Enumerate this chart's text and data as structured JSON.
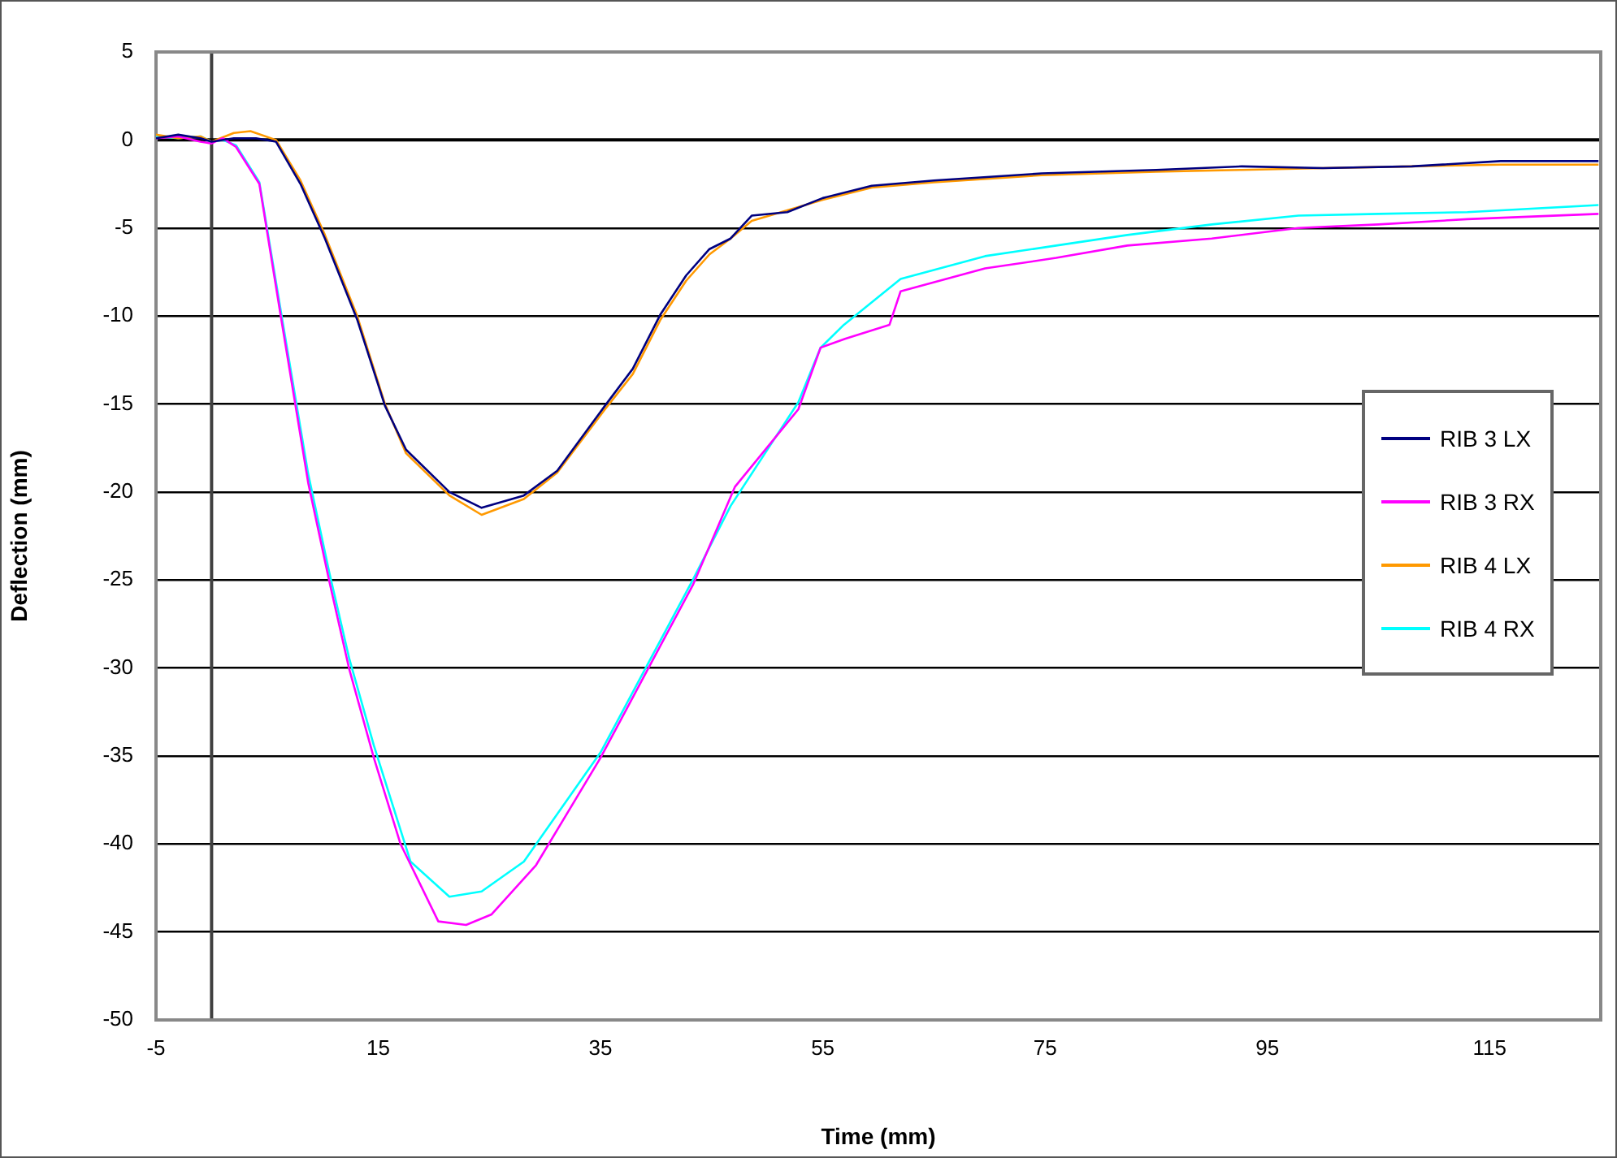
{
  "chart_data": {
    "type": "line",
    "xlabel": "Time (mm)",
    "ylabel": "Deflection (mm)",
    "xlim": [
      -5,
      125
    ],
    "xticks": [
      -5,
      15,
      35,
      55,
      75,
      95,
      115
    ],
    "ylim": [
      -50,
      5
    ],
    "yticks": [
      5,
      0,
      -5,
      -10,
      -15,
      -20,
      -25,
      -30,
      -35,
      -40,
      -45,
      -50
    ],
    "grid": "y",
    "legend": "right",
    "marker": "none",
    "line_style": "solid",
    "ref_lines": [
      {
        "axis": "x",
        "value": 0,
        "color": "#404040"
      },
      {
        "axis": "y",
        "value": 0,
        "color": "#000000"
      }
    ],
    "series": [
      {
        "name": "RIB 3 LX",
        "color": "#000080",
        "x": [
          -5,
          -3,
          -1,
          0,
          2,
          4,
          5.8,
          8,
          10.2,
          13.1,
          15.6,
          17.5,
          21.4,
          24.3,
          28.1,
          31.1,
          35.4,
          37.9,
          40.4,
          42.7,
          44.8,
          46.7,
          48.6,
          51.8,
          55,
          59.4,
          65,
          74.7,
          85,
          92.7,
          100,
          108,
          116,
          124.8
        ],
        "values": [
          0.1,
          0.3,
          0.1,
          -0.1,
          0.1,
          0.1,
          -0.1,
          -2.5,
          -5.6,
          -10.2,
          -15.1,
          -17.6,
          -20.0,
          -20.9,
          -20.2,
          -18.8,
          -15.1,
          -13.0,
          -9.9,
          -7.7,
          -6.2,
          -5.6,
          -4.3,
          -4.1,
          -3.3,
          -2.6,
          -2.3,
          -1.9,
          -1.7,
          -1.5,
          -1.6,
          -1.5,
          -1.2,
          -1.2
        ]
      },
      {
        "name": "RIB 3 RX",
        "color": "#ff00ff",
        "x": [
          -5,
          -3,
          -1,
          0,
          1,
          2.2,
          4.3,
          6.2,
          8.7,
          10.6,
          12.4,
          14.6,
          17.0,
          20.4,
          22.9,
          25.2,
          29.2,
          35,
          39.4,
          43.3,
          47.1,
          52.8,
          54.8,
          57,
          61,
          62,
          69.6,
          76,
          82.4,
          90,
          97.8,
          105,
          113,
          124.8
        ],
        "values": [
          0.1,
          0.2,
          -0.1,
          -0.2,
          0.1,
          -0.4,
          -2.5,
          -9.9,
          -19.5,
          -25.1,
          -30.1,
          -35.1,
          -40.0,
          -44.4,
          -44.6,
          -44.0,
          -41.2,
          -35.1,
          -29.9,
          -25.3,
          -19.7,
          -15.3,
          -11.8,
          -11.3,
          -10.5,
          -8.6,
          -7.3,
          -6.7,
          -6.0,
          -5.6,
          -5.0,
          -4.8,
          -4.5,
          -4.2
        ]
      },
      {
        "name": "RIB 4 LX",
        "color": "#ff9900",
        "x": [
          -5,
          -3,
          -1,
          0,
          2,
          3.5,
          5.8,
          8,
          10.2,
          13.1,
          15.6,
          17.5,
          21.4,
          24.3,
          28.1,
          31.1,
          35.4,
          37.9,
          40.4,
          42.7,
          44.8,
          46.7,
          48.6,
          51.8,
          55,
          59.4,
          65,
          74.7,
          85,
          92.7,
          100,
          108,
          116,
          124.8
        ],
        "values": [
          0.3,
          0.1,
          0.2,
          -0.1,
          0.4,
          0.5,
          0,
          -2.3,
          -5.4,
          -10.0,
          -15.0,
          -17.8,
          -20.2,
          -21.3,
          -20.4,
          -18.9,
          -15.3,
          -13.3,
          -10.2,
          -8.0,
          -6.5,
          -5.6,
          -4.6,
          -4.0,
          -3.4,
          -2.7,
          -2.4,
          -2.0,
          -1.8,
          -1.7,
          -1.6,
          -1.5,
          -1.4,
          -1.4
        ]
      },
      {
        "name": "RIB 4 RX",
        "color": "#00ffff",
        "x": [
          -5,
          -3,
          -1,
          0,
          1,
          2.2,
          4.3,
          6.2,
          8.7,
          10.6,
          12.4,
          14.6,
          17.9,
          21.4,
          24.3,
          28.1,
          35,
          39.4,
          43.3,
          46.7,
          52.8,
          54.8,
          56.9,
          62,
          69.6,
          76,
          82.4,
          90,
          97.8,
          105,
          113,
          124.8
        ],
        "values": [
          0.2,
          0.1,
          0.2,
          -0.1,
          0,
          -0.3,
          -2.4,
          -9.6,
          -19.0,
          -24.6,
          -29.5,
          -34.4,
          -41.0,
          -43.0,
          -42.7,
          -41.0,
          -34.8,
          -29.6,
          -25.0,
          -20.8,
          -14.9,
          -11.8,
          -10.5,
          -7.9,
          -6.6,
          -6.0,
          -5.4,
          -4.8,
          -4.3,
          -4.2,
          -4.1,
          -3.7
        ]
      }
    ]
  }
}
